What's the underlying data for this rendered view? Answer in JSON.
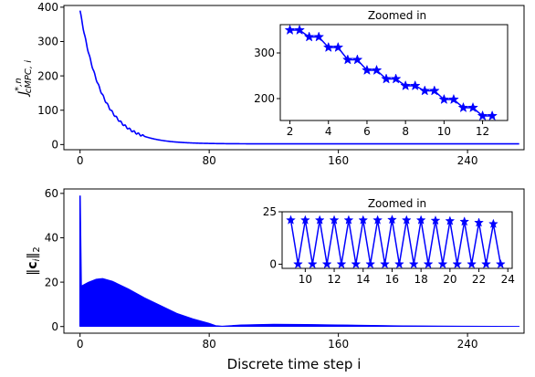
{
  "chart_data": [
    {
      "type": "line",
      "ylabel_parts": {
        "base": "J",
        "sup": "*,n",
        "sub": "cMPC, i"
      },
      "xlim": [
        -10,
        275
      ],
      "ylim": [
        -15,
        405
      ],
      "xticks": [
        "0",
        "80",
        "160",
        "240"
      ],
      "yticks": [
        "0",
        "100",
        "200",
        "300",
        "400"
      ],
      "color": "#0000ff",
      "series": [
        {
          "decay_from": 390,
          "decay_to": 2,
          "decay_rate": 0.072,
          "x_end": 272
        }
      ],
      "inset": {
        "title": "Zoomed in",
        "type": "line",
        "marker": "star",
        "xlim": [
          1.5,
          13.3
        ],
        "ylim": [
          152,
          362
        ],
        "xticks": [
          "2",
          "4",
          "6",
          "8",
          "10",
          "12"
        ],
        "yticks": [
          "200",
          "300"
        ],
        "points": [
          [
            2,
            350
          ],
          [
            2.5,
            350
          ],
          [
            3,
            335
          ],
          [
            3.5,
            335
          ],
          [
            4,
            312
          ],
          [
            4.5,
            312
          ],
          [
            5,
            285
          ],
          [
            5.5,
            285
          ],
          [
            6,
            262
          ],
          [
            6.5,
            262
          ],
          [
            7,
            243
          ],
          [
            7.5,
            243
          ],
          [
            8,
            228
          ],
          [
            8.5,
            228
          ],
          [
            9,
            217
          ],
          [
            9.5,
            217
          ],
          [
            10,
            198
          ],
          [
            10.5,
            198
          ],
          [
            11,
            180
          ],
          [
            11.5,
            180
          ],
          [
            12,
            162
          ],
          [
            12.5,
            162
          ]
        ]
      }
    },
    {
      "type": "line",
      "ylabel": "‖c_i‖₂",
      "xlabel": "Discrete time step i",
      "xlim": [
        -10,
        275
      ],
      "ylim": [
        -3,
        62
      ],
      "xticks": [
        "0",
        "80",
        "160",
        "240"
      ],
      "yticks": [
        "0",
        "20",
        "40",
        "60"
      ],
      "color": "#0000ff",
      "spike": {
        "x": 0,
        "y": 59
      },
      "envelope": [
        [
          0,
          18
        ],
        [
          5,
          20
        ],
        [
          10,
          21.4
        ],
        [
          14,
          21.7
        ],
        [
          20,
          20.5
        ],
        [
          30,
          17
        ],
        [
          40,
          13
        ],
        [
          50,
          9.5
        ],
        [
          60,
          6
        ],
        [
          70,
          3.5
        ],
        [
          80,
          1.5
        ],
        [
          84,
          0.5
        ],
        [
          88,
          0.2
        ],
        [
          100,
          0.8
        ],
        [
          120,
          1.1
        ],
        [
          140,
          1.0
        ],
        [
          160,
          0.8
        ],
        [
          200,
          0.4
        ],
        [
          240,
          0.2
        ],
        [
          272,
          0.1
        ]
      ],
      "inset": {
        "title": "Zoomed in",
        "type": "line",
        "marker": "star",
        "xlim": [
          8.4,
          24.3
        ],
        "ylim": [
          -2,
          25
        ],
        "xticks": [
          "10",
          "12",
          "14",
          "16",
          "18",
          "20",
          "22",
          "24"
        ],
        "yticks": [
          "0",
          "25"
        ],
        "peaks": [
          [
            9,
            21
          ],
          [
            10,
            21
          ],
          [
            11,
            21
          ],
          [
            12,
            21
          ],
          [
            13,
            21
          ],
          [
            14,
            21
          ],
          [
            15,
            21
          ],
          [
            16,
            21.2
          ],
          [
            17,
            21
          ],
          [
            18,
            21
          ],
          [
            19,
            20.8
          ],
          [
            20,
            20.6
          ],
          [
            21,
            20.3
          ],
          [
            22,
            19.8
          ],
          [
            23,
            19.2
          ]
        ],
        "valley_level": 0
      }
    }
  ]
}
